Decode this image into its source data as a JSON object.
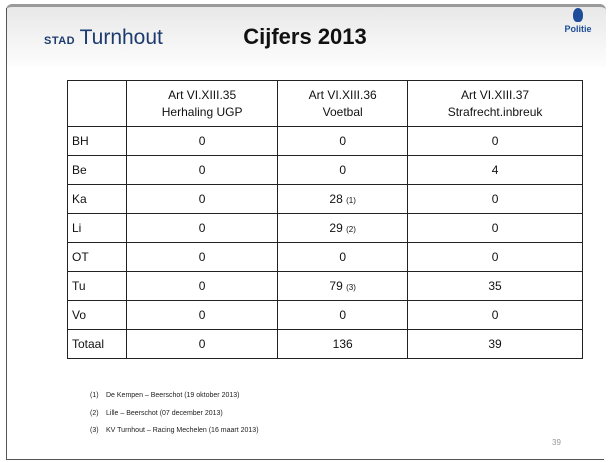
{
  "header": {
    "logo_small": "STAD",
    "logo_main": "Turnhout",
    "title": "Cijfers 2013",
    "police": "Politie"
  },
  "table": {
    "columns": [
      {
        "code": "Art VI.XIII.35",
        "label": "Herhaling UGP"
      },
      {
        "code": "Art VI.XIII.36",
        "label": "Voetbal"
      },
      {
        "code": "Art VI.XIII.37",
        "label": "Strafrecht.inbreuk"
      }
    ],
    "rows": [
      {
        "label": "BH",
        "cells": [
          {
            "text": "0"
          },
          {
            "text": "0"
          },
          {
            "text": "0"
          }
        ]
      },
      {
        "label": "Be",
        "cells": [
          {
            "text": "0"
          },
          {
            "text": "0"
          },
          {
            "text": "4"
          }
        ]
      },
      {
        "label": "Ka",
        "cells": [
          {
            "text": "0"
          },
          {
            "text": "28",
            "note": "(1)"
          },
          {
            "text": "0"
          }
        ]
      },
      {
        "label": "Li",
        "cells": [
          {
            "text": "0"
          },
          {
            "text": "29",
            "note": "(2)"
          },
          {
            "text": "0"
          }
        ]
      },
      {
        "label": "OT",
        "cells": [
          {
            "text": "0"
          },
          {
            "text": "0"
          },
          {
            "text": "0"
          }
        ]
      },
      {
        "label": "Tu",
        "cells": [
          {
            "text": "0"
          },
          {
            "text": "79",
            "note": "(3)"
          },
          {
            "text": "35"
          }
        ]
      },
      {
        "label": "Vo",
        "cells": [
          {
            "text": "0"
          },
          {
            "text": "0"
          },
          {
            "text": "0"
          }
        ]
      },
      {
        "label": "Totaal",
        "cells": [
          {
            "text": "0"
          },
          {
            "text": "136"
          },
          {
            "text": "39"
          }
        ]
      }
    ]
  },
  "footnotes": [
    {
      "marker": "(1)",
      "text": "De Kempen – Beerschot (19 oktober 2013)"
    },
    {
      "marker": "(2)",
      "text": "Lille – Beerschot (07 december 2013)"
    },
    {
      "marker": "(3)",
      "text": "KV Turnhout – Racing Mechelen (16 maart 2013)"
    }
  ],
  "page_number": "39"
}
